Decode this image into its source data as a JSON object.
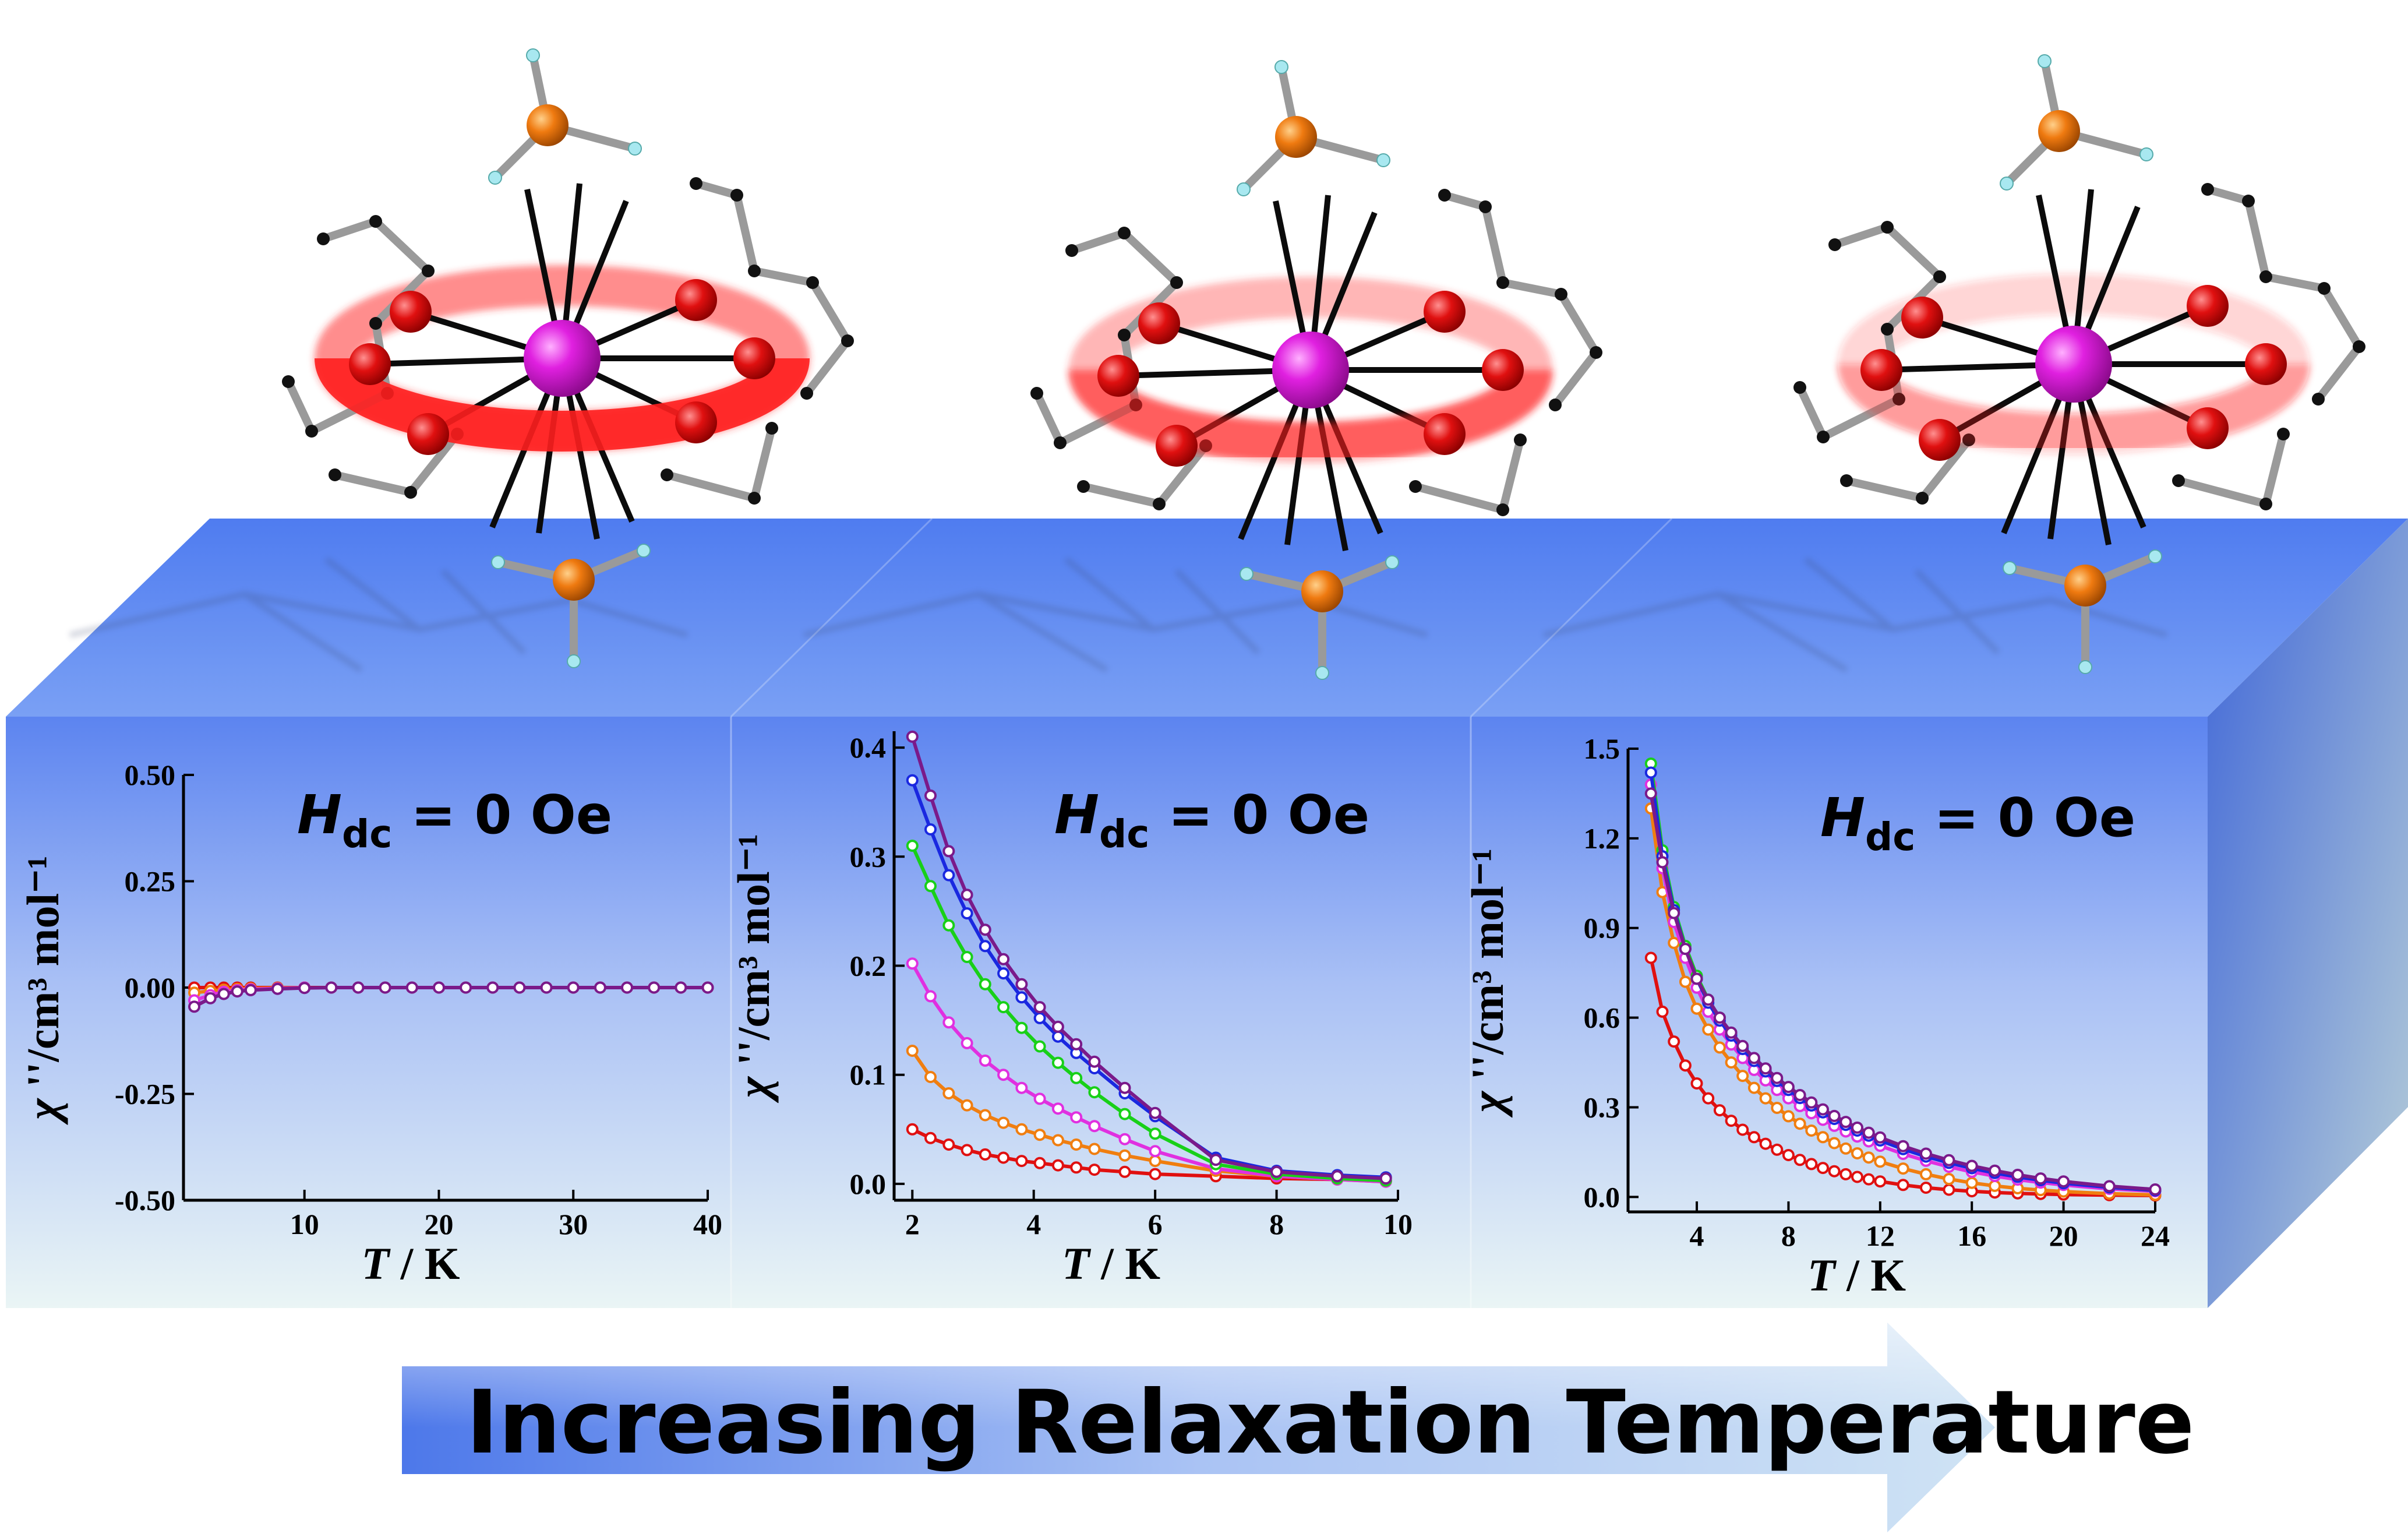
{
  "banner": {
    "text": "Increasing Relaxation Temperature"
  },
  "colors": {
    "slab_front_top": "#5f86f0",
    "slab_front_bottom": "#e9f4f6",
    "slab_top": "#6b93f3",
    "slab_side": "#4a6fd8",
    "ion": "#d21ad6",
    "oxygen": "#e01515",
    "phosphorus": "#ef7a10",
    "hydrogen": "#a8e8f0",
    "carbon": "#111111",
    "halo": "#ff2a2a",
    "arrow": "#4d78ea"
  },
  "molecules": [
    {
      "name": "molecule-1",
      "halo_opacity": 1.0
    },
    {
      "name": "molecule-2",
      "halo_opacity": 0.65
    },
    {
      "name": "molecule-3",
      "halo_opacity": 0.35
    }
  ],
  "chart_data": [
    {
      "type": "line",
      "title": "H_dc = 0 Oe",
      "title_main": "H",
      "title_sub": "dc",
      "title_rest": " = 0 Oe",
      "xlabel_main": "T",
      "xlabel_rest": " / K",
      "ylabel_main": "χ",
      "ylabel_rest": " ''/cm³ mol⁻¹",
      "xlim": [
        1,
        40
      ],
      "ylim": [
        -0.5,
        0.5
      ],
      "xticks": [
        10,
        20,
        30,
        40
      ],
      "yticks": [
        0.5,
        0.25,
        0.0,
        -0.25,
        -0.5
      ],
      "ytick_labels": [
        "0.50",
        "0.25",
        "0.00",
        "-0.25",
        "-0.50"
      ],
      "series": [
        {
          "color": "#e01010",
          "x": [
            1.8,
            3,
            4,
            5,
            6,
            8,
            10,
            12,
            14,
            16,
            18,
            20,
            22,
            24,
            26,
            28,
            30,
            32,
            34,
            36,
            38,
            40
          ],
          "y": [
            0.0,
            0.0,
            0.0,
            0.0,
            0.0,
            0.0,
            0.0,
            0.0,
            0.0,
            0.0,
            0.0,
            0.0,
            0.0,
            0.0,
            0.0,
            0.0,
            0.0,
            0.0,
            0.0,
            0.0,
            0.0,
            0.0
          ]
        },
        {
          "color": "#f07e10",
          "x": [
            1.8,
            3,
            4,
            5,
            6,
            8,
            10
          ],
          "y": [
            -0.012,
            -0.008,
            -0.005,
            -0.003,
            -0.002,
            -0.001,
            0.0
          ]
        },
        {
          "color": "#e030e0",
          "x": [
            1.8,
            3,
            4,
            5,
            6,
            8,
            10
          ],
          "y": [
            -0.03,
            -0.018,
            -0.01,
            -0.006,
            -0.004,
            -0.002,
            0.0
          ]
        },
        {
          "color": "#7a1a8a",
          "x": [
            1.8,
            3,
            4,
            5,
            6,
            8,
            10,
            12,
            14,
            16,
            18,
            20,
            22,
            24,
            26,
            28,
            30,
            32,
            34,
            36,
            38,
            40
          ],
          "y": [
            -0.045,
            -0.025,
            -0.015,
            -0.009,
            -0.006,
            -0.003,
            -0.001,
            0.0,
            0.0,
            0.0,
            0.0,
            0.0,
            0.0,
            0.0,
            0.0,
            0.0,
            0.0,
            0.0,
            0.0,
            0.0,
            0.0,
            0.0
          ]
        }
      ]
    },
    {
      "type": "line",
      "title": "H_dc = 0 Oe",
      "title_main": "H",
      "title_sub": "dc",
      "title_rest": " = 0 Oe",
      "xlabel_main": "T",
      "xlabel_rest": " / K",
      "ylabel_main": "χ",
      "ylabel_rest": " ''/cm³ mol⁻¹",
      "xlim": [
        1.7,
        10
      ],
      "ylim": [
        -0.015,
        0.415
      ],
      "xticks": [
        2,
        4,
        6,
        8,
        10
      ],
      "yticks": [
        0.0,
        0.1,
        0.2,
        0.3,
        0.4
      ],
      "ytick_labels": [
        "0.0",
        "0.1",
        "0.2",
        "0.3",
        "0.4"
      ],
      "series": [
        {
          "color": "#e01010",
          "x": [
            2,
            2.3,
            2.6,
            2.9,
            3.2,
            3.5,
            3.8,
            4.1,
            4.4,
            4.7,
            5,
            5.5,
            6,
            7,
            8,
            9,
            9.8
          ],
          "y": [
            0.05,
            0.042,
            0.036,
            0.031,
            0.027,
            0.024,
            0.021,
            0.019,
            0.017,
            0.015,
            0.013,
            0.011,
            0.009,
            0.007,
            0.005,
            0.004,
            0.003
          ]
        },
        {
          "color": "#f07e10",
          "x": [
            2,
            2.3,
            2.6,
            2.9,
            3.2,
            3.5,
            3.8,
            4.1,
            4.4,
            4.7,
            5,
            5.5,
            6,
            7,
            8,
            9,
            9.8
          ],
          "y": [
            0.122,
            0.098,
            0.083,
            0.072,
            0.063,
            0.056,
            0.05,
            0.045,
            0.04,
            0.036,
            0.032,
            0.026,
            0.021,
            0.012,
            0.007,
            0.004,
            0.002
          ]
        },
        {
          "color": "#e030e0",
          "x": [
            2,
            2.3,
            2.6,
            2.9,
            3.2,
            3.5,
            3.8,
            4.1,
            4.4,
            4.7,
            5,
            5.5,
            6,
            7,
            8,
            9,
            9.8
          ],
          "y": [
            0.202,
            0.172,
            0.148,
            0.129,
            0.113,
            0.1,
            0.088,
            0.078,
            0.069,
            0.061,
            0.053,
            0.041,
            0.03,
            0.014,
            0.007,
            0.004,
            0.002
          ]
        },
        {
          "color": "#18d018",
          "x": [
            2,
            2.3,
            2.6,
            2.9,
            3.2,
            3.5,
            3.8,
            4.1,
            4.4,
            4.7,
            5,
            5.5,
            6,
            7,
            8,
            9,
            9.8
          ],
          "y": [
            0.31,
            0.273,
            0.237,
            0.208,
            0.183,
            0.162,
            0.143,
            0.126,
            0.111,
            0.097,
            0.084,
            0.064,
            0.046,
            0.018,
            0.009,
            0.005,
            0.003
          ]
        },
        {
          "color": "#1a28e0",
          "x": [
            2,
            2.3,
            2.6,
            2.9,
            3.2,
            3.5,
            3.8,
            4.1,
            4.4,
            4.7,
            5,
            5.5,
            6,
            7,
            8,
            9,
            9.8
          ],
          "y": [
            0.37,
            0.325,
            0.283,
            0.248,
            0.218,
            0.193,
            0.171,
            0.152,
            0.135,
            0.12,
            0.106,
            0.083,
            0.062,
            0.024,
            0.012,
            0.008,
            0.006
          ]
        },
        {
          "color": "#7a1a8a",
          "x": [
            2,
            2.3,
            2.6,
            2.9,
            3.2,
            3.5,
            3.8,
            4.1,
            4.4,
            4.7,
            5,
            5.5,
            6,
            7,
            8,
            9,
            9.8
          ],
          "y": [
            0.41,
            0.356,
            0.305,
            0.265,
            0.233,
            0.206,
            0.183,
            0.162,
            0.144,
            0.128,
            0.112,
            0.088,
            0.065,
            0.022,
            0.011,
            0.007,
            0.005
          ]
        }
      ]
    },
    {
      "type": "line",
      "title": "H_dc = 0 Oe",
      "title_main": "H",
      "title_sub": "dc",
      "title_rest": " = 0 Oe",
      "xlabel_main": "T",
      "xlabel_rest": " / K",
      "ylabel_main": "χ",
      "ylabel_rest": " ''/cm³ mol⁻¹",
      "xlim": [
        1,
        24
      ],
      "ylim": [
        -0.05,
        1.5
      ],
      "xticks": [
        4,
        8,
        12,
        16,
        20,
        24
      ],
      "yticks": [
        0.0,
        0.3,
        0.6,
        0.9,
        1.2,
        1.5
      ],
      "ytick_labels": [
        "0.0",
        "0.3",
        "0.6",
        "0.9",
        "1.2",
        "1.5"
      ],
      "series": [
        {
          "color": "#e01010",
          "x": [
            2,
            2.5,
            3,
            3.5,
            4,
            4.5,
            5,
            5.5,
            6,
            6.5,
            7,
            7.5,
            8,
            8.5,
            9,
            9.5,
            10,
            10.5,
            11,
            11.5,
            12,
            13,
            14,
            15,
            16,
            17,
            18,
            19,
            20,
            22,
            24
          ],
          "y": [
            0.8,
            0.62,
            0.52,
            0.44,
            0.38,
            0.33,
            0.29,
            0.255,
            0.225,
            0.2,
            0.178,
            0.158,
            0.14,
            0.124,
            0.11,
            0.097,
            0.086,
            0.076,
            0.067,
            0.059,
            0.052,
            0.04,
            0.031,
            0.024,
            0.019,
            0.015,
            0.012,
            0.01,
            0.008,
            0.006,
            0.005
          ]
        },
        {
          "color": "#f07e10",
          "x": [
            2,
            2.5,
            3,
            3.5,
            4,
            4.5,
            5,
            5.5,
            6,
            6.5,
            7,
            7.5,
            8,
            8.5,
            9,
            9.5,
            10,
            10.5,
            11,
            11.5,
            12,
            13,
            14,
            15,
            16,
            17,
            18,
            19,
            20,
            22,
            24
          ],
          "y": [
            1.3,
            1.02,
            0.85,
            0.72,
            0.63,
            0.56,
            0.5,
            0.45,
            0.405,
            0.365,
            0.33,
            0.298,
            0.27,
            0.245,
            0.222,
            0.2,
            0.18,
            0.162,
            0.146,
            0.132,
            0.118,
            0.095,
            0.076,
            0.06,
            0.047,
            0.037,
            0.029,
            0.023,
            0.018,
            0.011,
            0.007
          ]
        },
        {
          "color": "#e030e0",
          "x": [
            2,
            2.5,
            3,
            3.5,
            4,
            4.5,
            5,
            5.5,
            6,
            6.5,
            7,
            7.5,
            8,
            8.5,
            9,
            9.5,
            10,
            10.5,
            11,
            11.5,
            12,
            13,
            14,
            15,
            16,
            17,
            18,
            19,
            20,
            22,
            24
          ],
          "y": [
            1.38,
            1.1,
            0.92,
            0.8,
            0.7,
            0.62,
            0.56,
            0.51,
            0.465,
            0.425,
            0.39,
            0.358,
            0.33,
            0.304,
            0.28,
            0.258,
            0.238,
            0.219,
            0.202,
            0.186,
            0.171,
            0.144,
            0.121,
            0.101,
            0.084,
            0.07,
            0.058,
            0.048,
            0.04,
            0.027,
            0.019
          ]
        },
        {
          "color": "#18d018",
          "x": [
            2,
            2.5,
            3,
            3.5,
            4,
            4.5,
            5,
            5.5,
            6,
            6.5,
            7,
            7.5,
            8,
            8.5,
            9,
            9.5,
            10,
            10.5,
            11,
            11.5,
            12,
            13,
            14,
            15,
            16,
            17,
            18,
            19,
            20,
            22,
            24
          ],
          "y": [
            1.45,
            1.16,
            0.97,
            0.84,
            0.74,
            0.66,
            0.6,
            0.545,
            0.5,
            0.46,
            0.424,
            0.392,
            0.362,
            0.335,
            0.31,
            0.287,
            0.265,
            0.245,
            0.226,
            0.209,
            0.193,
            0.164,
            0.139,
            0.117,
            0.098,
            0.082,
            0.068,
            0.057,
            0.047,
            0.032,
            0.022
          ]
        },
        {
          "color": "#1a28e0",
          "x": [
            2,
            2.5,
            3,
            3.5,
            4,
            4.5,
            5,
            5.5,
            6,
            6.5,
            7,
            7.5,
            8,
            8.5,
            9,
            9.5,
            10,
            10.5,
            11,
            11.5,
            12,
            13,
            14,
            15,
            16,
            17,
            18,
            19,
            20,
            22,
            24
          ],
          "y": [
            1.42,
            1.14,
            0.96,
            0.83,
            0.73,
            0.65,
            0.59,
            0.54,
            0.495,
            0.455,
            0.42,
            0.388,
            0.358,
            0.331,
            0.306,
            0.283,
            0.261,
            0.241,
            0.222,
            0.205,
            0.189,
            0.16,
            0.135,
            0.114,
            0.096,
            0.08,
            0.067,
            0.056,
            0.046,
            0.032,
            0.022
          ]
        },
        {
          "color": "#7a1a8a",
          "x": [
            2,
            2.5,
            3,
            3.5,
            4,
            4.5,
            5,
            5.5,
            6,
            6.5,
            7,
            7.5,
            8,
            8.5,
            9,
            9.5,
            10,
            10.5,
            11,
            11.5,
            12,
            13,
            14,
            15,
            16,
            17,
            18,
            19,
            20,
            22,
            24
          ],
          "y": [
            1.35,
            1.12,
            0.95,
            0.83,
            0.73,
            0.66,
            0.6,
            0.55,
            0.505,
            0.465,
            0.43,
            0.398,
            0.368,
            0.341,
            0.316,
            0.293,
            0.271,
            0.251,
            0.232,
            0.215,
            0.199,
            0.17,
            0.145,
            0.123,
            0.104,
            0.088,
            0.074,
            0.062,
            0.052,
            0.036,
            0.025
          ]
        }
      ]
    }
  ]
}
